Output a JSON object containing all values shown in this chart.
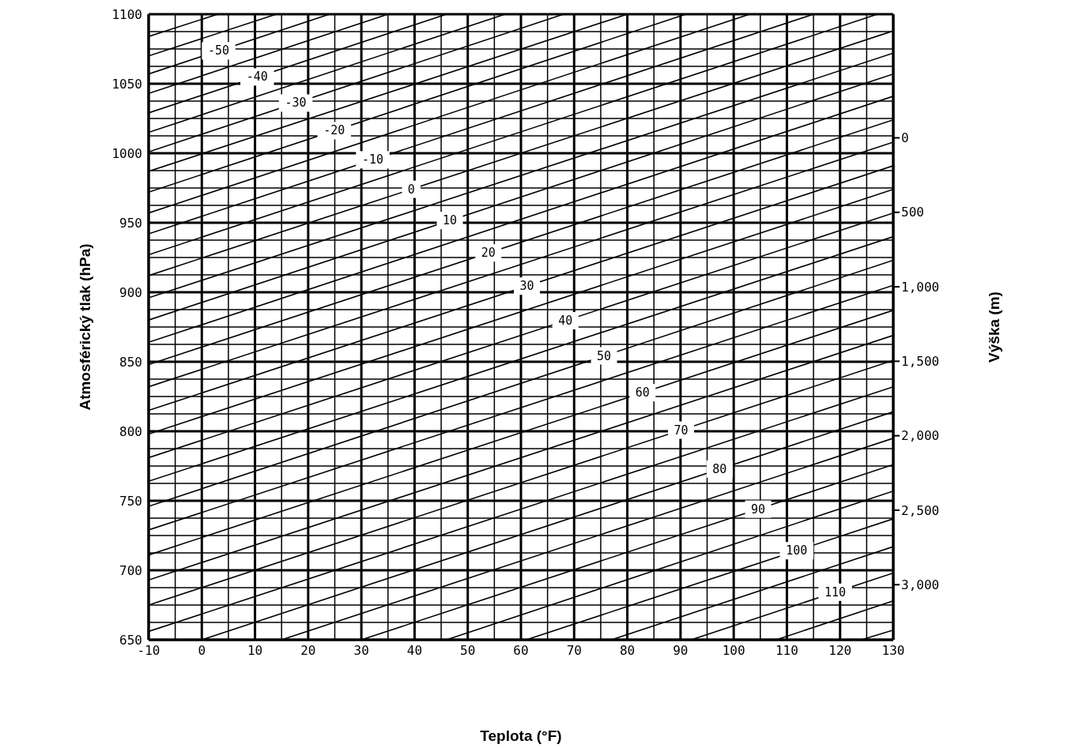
{
  "chart_data": {
    "type": "line",
    "xlabel": "Teplota (°F)",
    "ylabel": "Atmosférický tlak (hPa)",
    "y2label": "Výška (m)",
    "xlim": [
      -10,
      130
    ],
    "xticks": [
      -10,
      {
        "value": -5,
        "label": null
      },
      0,
      {
        "value": 5,
        "label": null
      },
      10,
      {
        "value": 15,
        "label": null
      },
      20,
      {
        "value": 25,
        "label": null
      },
      30,
      {
        "value": 35,
        "label": null
      },
      40,
      {
        "value": 45,
        "label": null
      },
      50,
      {
        "value": 55,
        "label": null
      },
      60,
      {
        "value": 65,
        "label": null
      },
      70,
      {
        "value": 75,
        "label": null
      },
      80,
      {
        "value": 85,
        "label": null
      },
      90,
      {
        "value": 95,
        "label": null
      },
      100,
      {
        "value": 105,
        "label": null
      },
      110,
      {
        "value": 115,
        "label": null
      },
      120,
      {
        "value": 125,
        "label": null
      },
      130
    ],
    "ylim": [
      650,
      1100
    ],
    "yticks": [
      650,
      {
        "value": 662.5,
        "label": null
      },
      {
        "value": 675,
        "label": null
      },
      {
        "value": 687.5,
        "label": null
      },
      700,
      {
        "value": 712.5,
        "label": null
      },
      {
        "value": 725,
        "label": null
      },
      {
        "value": 737.5,
        "label": null
      },
      750,
      {
        "value": 762.5,
        "label": null
      },
      {
        "value": 775,
        "label": null
      },
      {
        "value": 787.5,
        "label": null
      },
      800,
      {
        "value": 812.5,
        "label": null
      },
      {
        "value": 825,
        "label": null
      },
      {
        "value": 837.5,
        "label": null
      },
      850,
      {
        "value": 862.5,
        "label": null
      },
      {
        "value": 875,
        "label": null
      },
      {
        "value": 887.5,
        "label": null
      },
      900,
      {
        "value": 912.5,
        "label": null
      },
      {
        "value": 925,
        "label": null
      },
      {
        "value": 937.5,
        "label": null
      },
      950,
      {
        "value": 962.5,
        "label": null
      },
      {
        "value": 975,
        "label": null
      },
      {
        "value": 987.5,
        "label": null
      },
      1000,
      {
        "value": 1012.5,
        "label": null
      },
      {
        "value": 1025,
        "label": null
      },
      {
        "value": 1037.5,
        "label": null
      },
      1050,
      {
        "value": 1062.5,
        "label": null
      },
      {
        "value": 1075,
        "label": null
      },
      {
        "value": 1087.5,
        "label": null
      },
      1100
    ],
    "y2lim": [
      3370,
      -830
    ],
    "y2ticks": [
      0,
      500,
      {
        "value": 1000,
        "label": "1,000"
      },
      {
        "value": 1500,
        "label": "1,500"
      },
      {
        "value": 2000,
        "label": "2,000"
      },
      {
        "value": 2500,
        "label": "2,500"
      },
      {
        "value": 3000,
        "label": "3,000"
      }
    ],
    "grid": true,
    "line_style": "solid",
    "series": [
      {
        "color": "#000000",
        "x": [
          -10,
          3
        ],
        "values": [
          1084,
          1100
        ]
      },
      {
        "color": "#000000",
        "x": [
          -10,
          14
        ],
        "values": [
          1070,
          1100
        ]
      },
      {
        "name": "-50",
        "color": "#000000",
        "x": [
          -10,
          24
        ],
        "values": [
          1057,
          1100
        ]
      },
      {
        "color": "#000000",
        "x": [
          -10,
          35
        ],
        "values": [
          1043,
          1100
        ]
      },
      {
        "name": "-40",
        "color": "#000000",
        "x": [
          -10,
          46
        ],
        "values": [
          1029,
          1100
        ]
      },
      {
        "color": "#000000",
        "x": [
          -10,
          57
        ],
        "values": [
          1015,
          1100
        ]
      },
      {
        "name": "-30",
        "color": "#000000",
        "x": [
          -10,
          68
        ],
        "values": [
          1001,
          1100
        ]
      },
      {
        "color": "#000000",
        "x": [
          -10,
          80
        ],
        "values": [
          987,
          1100
        ]
      },
      {
        "name": "-20",
        "color": "#000000",
        "x": [
          -10,
          91
        ],
        "values": [
          972,
          1100
        ]
      },
      {
        "color": "#000000",
        "x": [
          -10,
          103
        ],
        "values": [
          957,
          1100
        ]
      },
      {
        "name": "-10",
        "color": "#000000",
        "x": [
          -10,
          115
        ],
        "values": [
          942,
          1100
        ]
      },
      {
        "color": "#000000",
        "x": [
          -10,
          127
        ],
        "values": [
          927,
          1100
        ]
      },
      {
        "name": "0",
        "color": "#000000",
        "x": [
          -10,
          130
        ],
        "values": [
          912,
          1088
        ]
      },
      {
        "color": "#000000",
        "x": [
          -10,
          130
        ],
        "values": [
          896,
          1072
        ]
      },
      {
        "name": "10",
        "color": "#000000",
        "x": [
          -10,
          130
        ],
        "values": [
          880,
          1057
        ]
      },
      {
        "color": "#000000",
        "x": [
          -10,
          130
        ],
        "values": [
          864,
          1041
        ]
      },
      {
        "name": "20",
        "color": "#000000",
        "x": [
          -10,
          130
        ],
        "values": [
          848,
          1024
        ]
      },
      {
        "color": "#000000",
        "x": [
          -10,
          130
        ],
        "values": [
          832,
          1008
        ]
      },
      {
        "name": "30",
        "color": "#000000",
        "x": [
          -10,
          130
        ],
        "values": [
          815,
          991
        ]
      },
      {
        "color": "#000000",
        "x": [
          -10,
          130
        ],
        "values": [
          798,
          974
        ]
      },
      {
        "name": "40",
        "color": "#000000",
        "x": [
          -10,
          130
        ],
        "values": [
          781,
          957
        ]
      },
      {
        "color": "#000000",
        "x": [
          -10,
          130
        ],
        "values": [
          764,
          940
        ]
      },
      {
        "name": "50",
        "color": "#000000",
        "x": [
          -10,
          130
        ],
        "values": [
          746,
          923
        ]
      },
      {
        "color": "#000000",
        "x": [
          -10,
          130
        ],
        "values": [
          729,
          905
        ]
      },
      {
        "name": "60",
        "color": "#000000",
        "x": [
          -10,
          130
        ],
        "values": [
          711,
          887
        ]
      },
      {
        "color": "#000000",
        "x": [
          -10,
          130
        ],
        "values": [
          693,
          869
        ]
      },
      {
        "name": "70",
        "color": "#000000",
        "x": [
          -10,
          130
        ],
        "values": [
          675,
          851
        ]
      },
      {
        "color": "#000000",
        "x": [
          -10,
          130
        ],
        "values": [
          656,
          832
        ]
      },
      {
        "name": "80",
        "color": "#000000",
        "x": [
          0,
          130
        ],
        "values": [
          650,
          814
        ]
      },
      {
        "color": "#000000",
        "x": [
          15,
          130
        ],
        "values": [
          650,
          795
        ]
      },
      {
        "name": "90",
        "color": "#000000",
        "x": [
          30,
          130
        ],
        "values": [
          650,
          776
        ]
      },
      {
        "color": "#000000",
        "x": [
          46,
          130
        ],
        "values": [
          650,
          757
        ]
      },
      {
        "name": "100",
        "color": "#000000",
        "x": [
          61,
          130
        ],
        "values": [
          650,
          737
        ]
      },
      {
        "color": "#000000",
        "x": [
          77,
          130
        ],
        "values": [
          650,
          717
        ]
      },
      {
        "name": "110",
        "color": "#000000",
        "x": [
          92,
          130
        ],
        "values": [
          650,
          698
        ]
      },
      {
        "color": "#000000",
        "x": [
          108,
          130
        ],
        "values": [
          650,
          678
        ]
      },
      {
        "color": "#000000",
        "x": [
          124,
          130
        ],
        "values": [
          650,
          657
        ]
      }
    ]
  }
}
